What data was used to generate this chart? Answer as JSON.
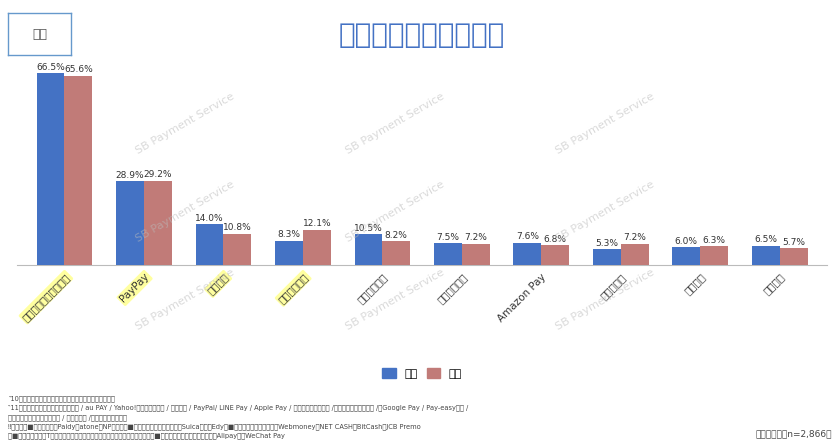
{
  "title": "よく利用する決済手段",
  "categories": [
    "クレジットカード決済",
    "PayPay",
    "楽天ペイ",
    "コンビニ決済",
    "ポイント決済",
    "キャリア決済",
    "Amazon Pay",
    "後払い決済",
    "代金引換",
    "銀行振込"
  ],
  "highlighted_categories": [
    "クレジットカード決済",
    "PayPay",
    "楽天ペイ",
    "コンビニ決済"
  ],
  "male_values": [
    66.5,
    28.9,
    14.0,
    8.3,
    10.5,
    7.5,
    7.6,
    5.3,
    6.0,
    6.5
  ],
  "female_values": [
    65.6,
    29.2,
    10.8,
    12.1,
    8.2,
    7.2,
    6.8,
    7.2,
    6.3,
    5.7
  ],
  "male_color": "#4472C4",
  "female_color": "#C17B78",
  "background_color": "#FFFFFF",
  "title_color": "#4472C4",
  "title_fontsize": 20,
  "bar_width": 0.35,
  "ylim": [
    0,
    72
  ],
  "footnote_lines": [
    "‶10位までの決済手段を表示（同率の場合はすべて表示）",
    "‶11位以降の選択肢：電子マネー決済 / au PAY / Yahoo!ウォレット決済 / 口座振替 / PayPal/ LINE Pay / Apple Pay / メルペイネット決済 /プリペイドカード決済 /　Google Pay / Pay-easy決済 /",
    "　リクルートかんたん支払い / 中華系決済 /その他（自由回答）",
    "‼各内訳　■後払い決済：Paidy、atone、NP後払い　■電子マネー決済：モバイルSuica、楽天Edy　■プリペイドカード決済：Webmoney、NET CASH、BitCash、JCB Premo",
    "　■ポイント決済：Tポイントプログラム、永久不滅ポイント、ネットマイル　■中華系決済：銀聯ネット決済、Alipay＋、WeChat Pay"
  ],
  "sample_note": "（複数選択　n=2,866）",
  "legend_male": "男性",
  "legend_female": "女性",
  "box_label": "物販",
  "watermark_text": "SB Payment Service",
  "highlight_color": "#FFFFA0",
  "box_border_color": "#6699CC"
}
